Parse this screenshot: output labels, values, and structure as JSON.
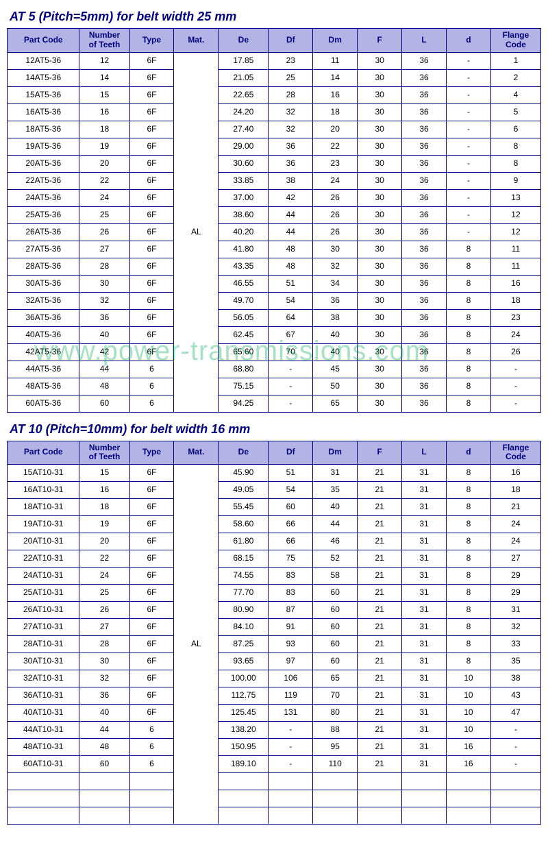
{
  "watermark": "www.power-transmissions.com",
  "styles": {
    "title_color": "#000080",
    "header_bg": "#b3b3e6",
    "header_fg": "#000080",
    "border_color": "#000080",
    "font_family": "Arial",
    "body_fontsize": 12,
    "title_fontsize": 18
  },
  "tables": [
    {
      "title": "AT 5   (Pitch=5mm) for belt width 25 mm",
      "columns": [
        "Part Code",
        "Number of Teeth",
        "Type",
        "Mat.",
        "De",
        "Df",
        "Dm",
        "F",
        "L",
        "d",
        "Flange Code"
      ],
      "mat": "AL",
      "empty_trailing_rows": 0,
      "rows": [
        [
          "12AT5-36",
          "12",
          "6F",
          "17.85",
          "23",
          "11",
          "30",
          "36",
          "-",
          "1"
        ],
        [
          "14AT5-36",
          "14",
          "6F",
          "21.05",
          "25",
          "14",
          "30",
          "36",
          "-",
          "2"
        ],
        [
          "15AT5-36",
          "15",
          "6F",
          "22.65",
          "28",
          "16",
          "30",
          "36",
          "-",
          "4"
        ],
        [
          "16AT5-36",
          "16",
          "6F",
          "24.20",
          "32",
          "18",
          "30",
          "36",
          "-",
          "5"
        ],
        [
          "18AT5-36",
          "18",
          "6F",
          "27.40",
          "32",
          "20",
          "30",
          "36",
          "-",
          "6"
        ],
        [
          "19AT5-36",
          "19",
          "6F",
          "29.00",
          "36",
          "22",
          "30",
          "36",
          "-",
          "8"
        ],
        [
          "20AT5-36",
          "20",
          "6F",
          "30.60",
          "36",
          "23",
          "30",
          "36",
          "-",
          "8"
        ],
        [
          "22AT5-36",
          "22",
          "6F",
          "33.85",
          "38",
          "24",
          "30",
          "36",
          "-",
          "9"
        ],
        [
          "24AT5-36",
          "24",
          "6F",
          "37.00",
          "42",
          "26",
          "30",
          "36",
          "-",
          "13"
        ],
        [
          "25AT5-36",
          "25",
          "6F",
          "38.60",
          "44",
          "26",
          "30",
          "36",
          "-",
          "12"
        ],
        [
          "26AT5-36",
          "26",
          "6F",
          "40.20",
          "44",
          "26",
          "30",
          "36",
          "-",
          "12"
        ],
        [
          "27AT5-36",
          "27",
          "6F",
          "41.80",
          "48",
          "30",
          "30",
          "36",
          "8",
          "11"
        ],
        [
          "28AT5-36",
          "28",
          "6F",
          "43.35",
          "48",
          "32",
          "30",
          "36",
          "8",
          "11"
        ],
        [
          "30AT5-36",
          "30",
          "6F",
          "46.55",
          "51",
          "34",
          "30",
          "36",
          "8",
          "16"
        ],
        [
          "32AT5-36",
          "32",
          "6F",
          "49.70",
          "54",
          "36",
          "30",
          "36",
          "8",
          "18"
        ],
        [
          "36AT5-36",
          "36",
          "6F",
          "56.05",
          "64",
          "38",
          "30",
          "36",
          "8",
          "23"
        ],
        [
          "40AT5-36",
          "40",
          "6F",
          "62.45",
          "67",
          "40",
          "30",
          "36",
          "8",
          "24"
        ],
        [
          "42AT5-36",
          "42",
          "6F",
          "65.60",
          "70",
          "40",
          "30",
          "36",
          "8",
          "26"
        ],
        [
          "44AT5-36",
          "44",
          "6",
          "68.80",
          "-",
          "45",
          "30",
          "36",
          "8",
          "-"
        ],
        [
          "48AT5-36",
          "48",
          "6",
          "75.15",
          "-",
          "50",
          "30",
          "36",
          "8",
          "-"
        ],
        [
          "60AT5-36",
          "60",
          "6",
          "94.25",
          "-",
          "65",
          "30",
          "36",
          "8",
          "-"
        ]
      ]
    },
    {
      "title": "AT 10   (Pitch=10mm) for belt width 16 mm",
      "columns": [
        "Part Code",
        "Number of Teeth",
        "Type",
        "Mat.",
        "De",
        "Df",
        "Dm",
        "F",
        "L",
        "d",
        "Flange Code"
      ],
      "mat": "AL",
      "empty_trailing_rows": 3,
      "rows": [
        [
          "15AT10-31",
          "15",
          "6F",
          "45.90",
          "51",
          "31",
          "21",
          "31",
          "8",
          "16"
        ],
        [
          "16AT10-31",
          "16",
          "6F",
          "49.05",
          "54",
          "35",
          "21",
          "31",
          "8",
          "18"
        ],
        [
          "18AT10-31",
          "18",
          "6F",
          "55.45",
          "60",
          "40",
          "21",
          "31",
          "8",
          "21"
        ],
        [
          "19AT10-31",
          "19",
          "6F",
          "58.60",
          "66",
          "44",
          "21",
          "31",
          "8",
          "24"
        ],
        [
          "20AT10-31",
          "20",
          "6F",
          "61.80",
          "66",
          "46",
          "21",
          "31",
          "8",
          "24"
        ],
        [
          "22AT10-31",
          "22",
          "6F",
          "68.15",
          "75",
          "52",
          "21",
          "31",
          "8",
          "27"
        ],
        [
          "24AT10-31",
          "24",
          "6F",
          "74.55",
          "83",
          "58",
          "21",
          "31",
          "8",
          "29"
        ],
        [
          "25AT10-31",
          "25",
          "6F",
          "77.70",
          "83",
          "60",
          "21",
          "31",
          "8",
          "29"
        ],
        [
          "26AT10-31",
          "26",
          "6F",
          "80.90",
          "87",
          "60",
          "21",
          "31",
          "8",
          "31"
        ],
        [
          "27AT10-31",
          "27",
          "6F",
          "84.10",
          "91",
          "60",
          "21",
          "31",
          "8",
          "32"
        ],
        [
          "28AT10-31",
          "28",
          "6F",
          "87.25",
          "93",
          "60",
          "21",
          "31",
          "8",
          "33"
        ],
        [
          "30AT10-31",
          "30",
          "6F",
          "93.65",
          "97",
          "60",
          "21",
          "31",
          "8",
          "35"
        ],
        [
          "32AT10-31",
          "32",
          "6F",
          "100.00",
          "106",
          "65",
          "21",
          "31",
          "10",
          "38"
        ],
        [
          "36AT10-31",
          "36",
          "6F",
          "112.75",
          "119",
          "70",
          "21",
          "31",
          "10",
          "43"
        ],
        [
          "40AT10-31",
          "40",
          "6F",
          "125.45",
          "131",
          "80",
          "21",
          "31",
          "10",
          "47"
        ],
        [
          "44AT10-31",
          "44",
          "6",
          "138.20",
          "-",
          "88",
          "21",
          "31",
          "10",
          "-"
        ],
        [
          "48AT10-31",
          "48",
          "6",
          "150.95",
          "-",
          "95",
          "21",
          "31",
          "16",
          "-"
        ],
        [
          "60AT10-31",
          "60",
          "6",
          "189.10",
          "-",
          "110",
          "21",
          "31",
          "16",
          "-"
        ]
      ]
    }
  ]
}
